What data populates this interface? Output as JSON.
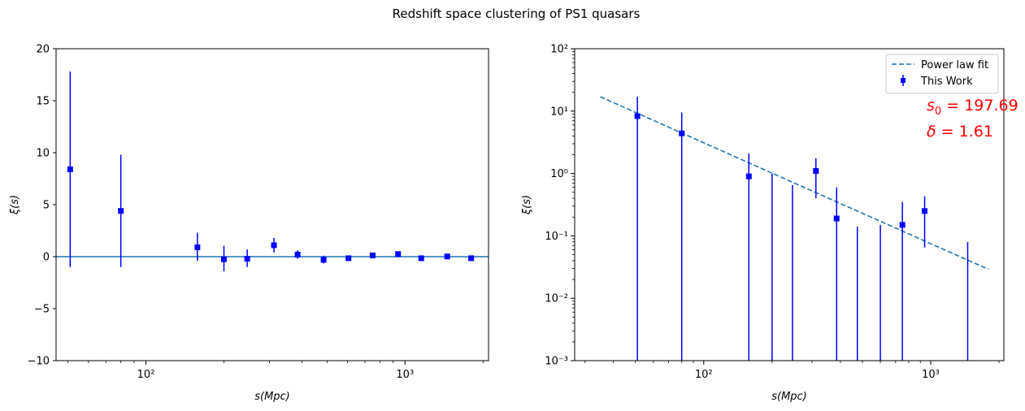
{
  "figure": {
    "title": "Redshift space clustering of PS1 quasars"
  },
  "chart_data": [
    {
      "type": "scatter",
      "x_scale": "log",
      "y_scale": "linear",
      "xlabel": "s(Mpc)",
      "ylabel": "ξ(s)",
      "xlim": [
        45,
        2100
      ],
      "ylim": [
        -10,
        20
      ],
      "x_ticks": [
        "10²",
        "10³"
      ],
      "y_ticks": [
        "−10",
        "−5",
        "0",
        "5",
        "10",
        "15",
        "20"
      ],
      "reference_line_y": 0,
      "series": [
        {
          "marker": "square",
          "color": "#0000ff",
          "x": [
            51,
            80,
            158,
            200,
            246,
            312,
            385,
            485,
            605,
            750,
            940,
            1155,
            1455,
            1800
          ],
          "y": [
            8.4,
            4.4,
            0.9,
            -0.25,
            -0.2,
            1.1,
            0.2,
            -0.3,
            -0.15,
            0.12,
            0.25,
            -0.15,
            0.02,
            -0.15
          ],
          "err_lo": [
            9.4,
            5.4,
            1.3,
            1.15,
            0.8,
            0.7,
            0.4,
            0.35,
            0.2,
            0.2,
            0.2,
            0.2,
            0.2,
            0.2
          ],
          "err_hi": [
            9.4,
            5.4,
            1.4,
            1.3,
            0.9,
            0.7,
            0.4,
            0.4,
            0.2,
            0.2,
            0.2,
            0.2,
            0.2,
            0.2
          ]
        }
      ]
    },
    {
      "type": "scatter",
      "x_scale": "log",
      "y_scale": "log",
      "xlabel": "s(Mpc)",
      "ylabel": "ξ(s)",
      "xlim": [
        27,
        2100
      ],
      "ylim": [
        0.001,
        100
      ],
      "x_ticks": [
        "10²",
        "10³"
      ],
      "y_ticks": [
        "10⁻³",
        "10⁻²",
        "10⁻¹",
        "10⁰",
        "10¹",
        "10²"
      ],
      "legend_position": "top-right",
      "legend_entries": [
        "Power law fit",
        "This Work"
      ],
      "fit_line": {
        "x_start": 35,
        "x_end": 1800,
        "y_start": 17,
        "y_end": 0.029
      },
      "series": [
        {
          "name": "This Work",
          "marker": "square",
          "color": "#0000ff",
          "x": [
            51,
            80,
            158,
            200,
            246,
            312,
            385,
            475,
            600,
            750,
            940,
            1455
          ],
          "y": [
            8.3,
            4.4,
            0.9,
            null,
            null,
            1.1,
            0.19,
            null,
            null,
            0.15,
            0.25,
            null
          ],
          "err_top": [
            17,
            9.5,
            2.1,
            1.0,
            0.65,
            1.75,
            0.6,
            0.14,
            0.15,
            0.35,
            0.43,
            0.08
          ],
          "err_bottom": [
            0.001,
            0.001,
            0.001,
            0.001,
            0.001,
            0.4,
            0.001,
            0.001,
            0.001,
            0.001,
            0.065,
            0.001
          ]
        }
      ],
      "annotations": [
        {
          "label": "s0",
          "value": "197.69",
          "text_rendered": "s₀ = 197.69"
        },
        {
          "label": "delta",
          "value": "1.61",
          "text_rendered": "δ = 1.61"
        }
      ]
    }
  ]
}
